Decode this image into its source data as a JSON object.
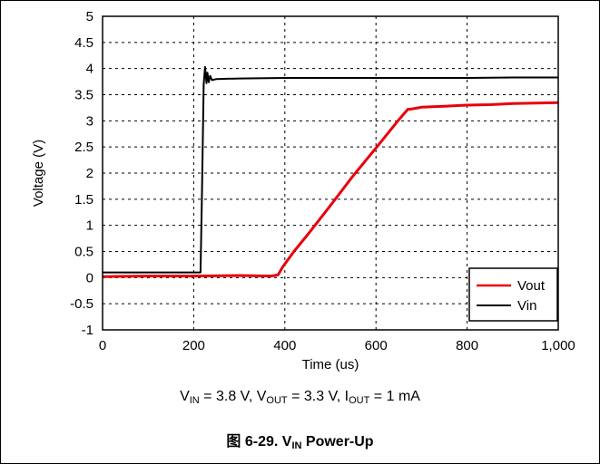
{
  "chart_data": {
    "type": "line",
    "xlabel": "Time (us)",
    "ylabel": "Voltage (V)",
    "xlim": [
      0,
      1000
    ],
    "ylim": [
      -1,
      5
    ],
    "x_ticks": [
      0,
      200,
      400,
      600,
      800,
      1000
    ],
    "x_tick_labels": [
      "0",
      "200",
      "400",
      "600",
      "800",
      "1,000"
    ],
    "y_ticks": [
      -1,
      -0.5,
      0,
      0.5,
      1,
      1.5,
      2,
      2.5,
      3,
      3.5,
      4,
      4.5,
      5
    ],
    "y_tick_labels": [
      "-1",
      "-0.5",
      "0",
      "0.5",
      "1",
      "1.5",
      "2",
      "2.5",
      "3",
      "3.5",
      "4",
      "4.5",
      "5"
    ],
    "grid": true,
    "legend_position": "bottom-right",
    "series": [
      {
        "name": "Vout",
        "color": "#e8000b",
        "x": [
          0,
          100,
          200,
          300,
          370,
          385,
          395,
          420,
          450,
          500,
          550,
          600,
          650,
          670,
          680,
          700,
          750,
          800,
          850,
          900,
          950,
          1000
        ],
        "y": [
          0.02,
          0.03,
          0.03,
          0.04,
          0.03,
          0.05,
          0.2,
          0.5,
          0.82,
          1.38,
          1.95,
          2.48,
          3.02,
          3.22,
          3.23,
          3.26,
          3.28,
          3.3,
          3.31,
          3.33,
          3.34,
          3.35
        ]
      },
      {
        "name": "Vin",
        "color": "#000000",
        "x": [
          0,
          100,
          200,
          215,
          218,
          222,
          225,
          228,
          230,
          233,
          236,
          240,
          250,
          300,
          400,
          500,
          600,
          700,
          800,
          900,
          1000
        ],
        "y": [
          0.1,
          0.1,
          0.1,
          0.1,
          1.5,
          3.7,
          4.03,
          3.72,
          3.92,
          3.74,
          3.86,
          3.78,
          3.8,
          3.81,
          3.82,
          3.82,
          3.82,
          3.82,
          3.82,
          3.83,
          3.83
        ]
      }
    ]
  },
  "conditions": {
    "vin_label": "V",
    "vin_sub": "IN",
    "vin_value": " = 3.8 V, ",
    "vout_label": "V",
    "vout_sub": "OUT",
    "vout_value": " = 3.3 V, ",
    "iout_label": "I",
    "iout_sub": "OUT",
    "iout_value": " = 1 mA"
  },
  "caption": {
    "prefix": "图 6-29. V",
    "sub": "IN",
    "suffix": " Power-Up"
  }
}
